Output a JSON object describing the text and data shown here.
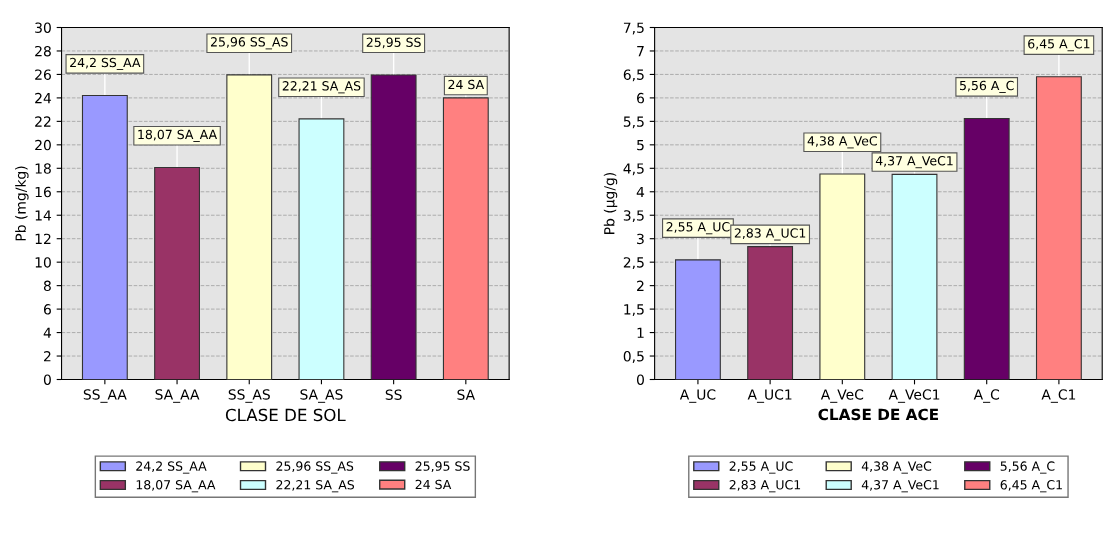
{
  "chart_data": [
    {
      "type": "bar",
      "xlabel": "CLASE DE SOL",
      "ylabel": "Pb (mg/kg)",
      "categories": [
        "SS_AA",
        "SA_AA",
        "SS_AS",
        "SA_AS",
        "SS",
        "SA"
      ],
      "series": [
        {
          "name": "24,2 SS_AA",
          "color": "#9999ff",
          "values": [
            24.2,
            null,
            null,
            null,
            null,
            null
          ],
          "value_labels": [
            "24,2 SS_AA",
            null,
            null,
            null,
            null,
            null
          ]
        },
        {
          "name": "18,07 SA_AA",
          "color": "#993366",
          "values": [
            null,
            18.07,
            null,
            null,
            null,
            null
          ],
          "value_labels": [
            null,
            "18,07 SA_AA",
            null,
            null,
            null,
            null
          ]
        },
        {
          "name": "25,96 SS_AS",
          "color": "#ffffcc",
          "values": [
            null,
            null,
            25.96,
            null,
            null,
            null
          ],
          "value_labels": [
            null,
            null,
            "25,96 SS_AS",
            null,
            null,
            null
          ]
        },
        {
          "name": "22,21 SA_AS",
          "color": "#ccffff",
          "values": [
            null,
            null,
            null,
            22.21,
            null,
            null
          ],
          "value_labels": [
            null,
            null,
            null,
            "22,21 SA_AS",
            null,
            null
          ]
        },
        {
          "name": "25,95 SS",
          "color": "#660066",
          "values": [
            null,
            null,
            null,
            null,
            25.95,
            null
          ],
          "value_labels": [
            null,
            null,
            null,
            null,
            "25,95 SS",
            null
          ]
        },
        {
          "name": "24 SA",
          "color": "#ff8080",
          "values": [
            null,
            null,
            null,
            null,
            null,
            24
          ],
          "value_labels": [
            null,
            null,
            null,
            null,
            null,
            "24 SA"
          ]
        }
      ],
      "ylim": [
        0,
        30
      ],
      "yticks": [
        0,
        2,
        4,
        6,
        8,
        10,
        12,
        14,
        16,
        18,
        20,
        22,
        24,
        26,
        28,
        30
      ],
      "grid": "y",
      "legend": "bottom"
    },
    {
      "type": "bar",
      "xlabel": "CLASE DE ACE",
      "ylabel": "Pb (µg/g)",
      "categories": [
        "A_UC",
        "A_UC1",
        "A_VeC",
        "A_VeC1",
        "A_C",
        "A_C1"
      ],
      "series": [
        {
          "name": "2,55 A_UC",
          "color": "#9999ff",
          "values": [
            2.55,
            null,
            null,
            null,
            null,
            null
          ],
          "value_labels": [
            "2,55 A_UC",
            null,
            null,
            null,
            null,
            null
          ]
        },
        {
          "name": "2,83 A_UC1",
          "color": "#993366",
          "values": [
            null,
            2.83,
            null,
            null,
            null,
            null
          ],
          "value_labels": [
            null,
            "2,83 A_UC1",
            null,
            null,
            null,
            null
          ]
        },
        {
          "name": "4,38 A_VeC",
          "color": "#ffffcc",
          "values": [
            null,
            null,
            4.38,
            null,
            null,
            null
          ],
          "value_labels": [
            null,
            null,
            "4,38 A_VeC",
            null,
            null,
            null
          ]
        },
        {
          "name": "4,37 A_VeC1",
          "color": "#ccffff",
          "values": [
            null,
            null,
            null,
            4.37,
            null,
            null
          ],
          "value_labels": [
            null,
            null,
            null,
            "4,37 A_VeC1",
            null,
            null
          ]
        },
        {
          "name": "5,56 A_C",
          "color": "#660066",
          "values": [
            null,
            null,
            null,
            null,
            5.56,
            null
          ],
          "value_labels": [
            null,
            null,
            null,
            null,
            "5,56 A_C",
            null
          ]
        },
        {
          "name": "6,45 A_C1",
          "color": "#ff8080",
          "values": [
            null,
            null,
            null,
            null,
            null,
            6.45
          ],
          "value_labels": [
            null,
            null,
            null,
            null,
            null,
            "6,45 A_C1"
          ]
        }
      ],
      "ylim": [
        0,
        7.5
      ],
      "yticks": [
        0,
        {
          "value": 0.5,
          "label": "0,5"
        },
        1,
        {
          "value": 1.5,
          "label": "1,5"
        },
        2,
        {
          "value": 2.5,
          "label": "2,5"
        },
        3,
        {
          "value": 3.5,
          "label": "3,5"
        },
        4,
        {
          "value": 4.5,
          "label": "4,5"
        },
        5,
        {
          "value": 5.5,
          "label": "5,5"
        },
        6,
        {
          "value": 6.5,
          "label": "6,5"
        },
        7,
        {
          "value": 7.5,
          "label": "7,5"
        }
      ],
      "grid": "y",
      "legend": "bottom"
    }
  ]
}
